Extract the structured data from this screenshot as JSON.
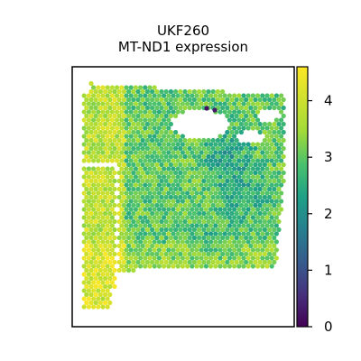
{
  "chart_data": {
    "type": "heatmap",
    "subtype": "spatial-hex-spot-map",
    "title": "UKF260",
    "subtitle": "MT-ND1 expression",
    "xlabel": "",
    "ylabel": "",
    "axes_ticks_shown": false,
    "grid": false,
    "colormap": "viridis",
    "colorbar": {
      "position": "right",
      "range": [
        0,
        4.6
      ],
      "ticks": [
        0,
        1,
        2,
        3,
        4
      ],
      "tick_labels": [
        "0",
        "1",
        "2",
        "3",
        "4"
      ]
    },
    "colors": {
      "low": "#440154",
      "mid": "#21918c",
      "high": "#fde725"
    }
  }
}
